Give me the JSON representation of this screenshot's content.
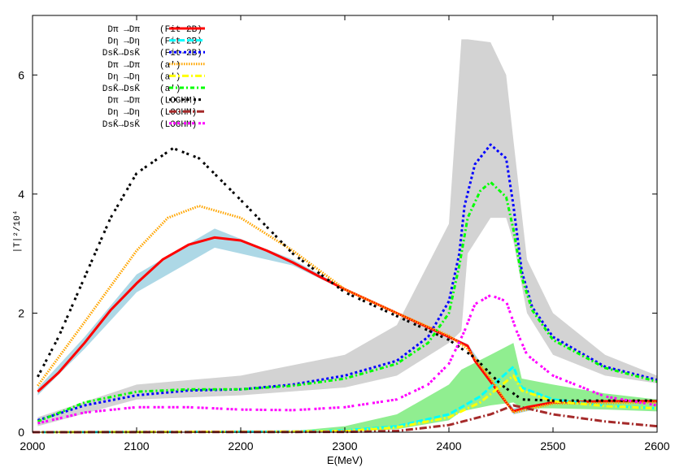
{
  "chart_data": {
    "type": "line",
    "title": "",
    "xlabel": "E(MeV)",
    "ylabel": "|T|²/10⁴",
    "xlim": [
      2000,
      2600
    ],
    "ylim": [
      0,
      7
    ],
    "xticks": [
      "2000",
      "2100",
      "2200",
      "2300",
      "2400",
      "2500",
      "2600"
    ],
    "yticks": [
      "0",
      "2",
      "4",
      "6"
    ],
    "grid": false,
    "legend_position": "top-left",
    "bands": [
      {
        "color": "#d3d3d3",
        "x": [
          2005,
          2100,
          2200,
          2300,
          2350,
          2400,
          2412,
          2418,
          2440,
          2455,
          2462,
          2475,
          2500,
          2550,
          2600
        ],
        "lower": [
          0.1,
          0.55,
          0.62,
          0.75,
          0.95,
          1.5,
          1.7,
          3.0,
          3.6,
          3.6,
          3.2,
          2.0,
          1.3,
          0.95,
          0.82
        ],
        "upper": [
          0.25,
          0.8,
          0.95,
          1.3,
          1.8,
          3.5,
          6.6,
          6.6,
          6.55,
          6.0,
          4.9,
          2.9,
          2.0,
          1.3,
          0.95
        ]
      },
      {
        "color": "#add8e6",
        "x": [
          2005,
          2050,
          2100,
          2175,
          2250,
          2300,
          2400,
          2418,
          2462,
          2500,
          2600
        ],
        "lower": [
          0.62,
          1.4,
          2.35,
          3.1,
          2.8,
          2.38,
          1.58,
          1.42,
          0.3,
          0.45,
          0.48
        ],
        "upper": [
          0.74,
          1.6,
          2.65,
          3.42,
          2.9,
          2.42,
          1.62,
          1.48,
          0.4,
          0.55,
          0.56
        ]
      },
      {
        "color": "#90ee90",
        "x": [
          2250,
          2300,
          2350,
          2400,
          2412,
          2440,
          2462,
          2470,
          2500,
          2550,
          2600
        ],
        "lower": [
          0,
          0.0,
          0.05,
          0.2,
          0.35,
          0.45,
          0.5,
          0.4,
          0.4,
          0.38,
          0.35
        ],
        "upper": [
          0.02,
          0.1,
          0.3,
          0.8,
          1.05,
          1.3,
          1.5,
          0.9,
          0.8,
          0.65,
          0.55
        ]
      }
    ],
    "series": [
      {
        "name": "Dπ →Dπ  (Fit-2B)",
        "label": {
          "a": "Dπ →Dπ",
          "b": "(Fit-2B)"
        },
        "color": "#ff0000",
        "dash": "",
        "width": 3,
        "x": [
          2005,
          2025,
          2050,
          2075,
          2100,
          2125,
          2150,
          2175,
          2200,
          2225,
          2250,
          2275,
          2300,
          2325,
          2350,
          2375,
          2400,
          2412,
          2418,
          2425,
          2440,
          2455,
          2462,
          2475,
          2500,
          2550,
          2600
        ],
        "y": [
          0.68,
          1.0,
          1.5,
          2.05,
          2.5,
          2.9,
          3.15,
          3.27,
          3.22,
          3.05,
          2.85,
          2.62,
          2.4,
          2.2,
          2.0,
          1.8,
          1.6,
          1.5,
          1.45,
          1.2,
          0.85,
          0.5,
          0.35,
          0.42,
          0.5,
          0.52,
          0.52
        ]
      },
      {
        "name": "Dη →Dη  (Fit-2B)",
        "label": {
          "a": "Dη →Dη",
          "b": "(Fit-2B)"
        },
        "color": "#00ffff",
        "dash": "8,3",
        "width": 3,
        "x": [
          2000,
          2250,
          2300,
          2350,
          2400,
          2430,
          2462,
          2470,
          2500,
          2550,
          2600
        ],
        "y": [
          0,
          0.01,
          0.03,
          0.1,
          0.3,
          0.6,
          1.1,
          0.75,
          0.55,
          0.45,
          0.4
        ]
      },
      {
        "name": "DsK̄→DsK̄ (Fit-2B)",
        "label": {
          "a": "DsK̄→DsK̄",
          "b": "(Fit-2B)"
        },
        "color": "#0000ff",
        "dash": "3,3",
        "width": 3,
        "x": [
          2005,
          2050,
          2100,
          2150,
          2200,
          2250,
          2300,
          2350,
          2380,
          2400,
          2410,
          2415,
          2425,
          2440,
          2455,
          2462,
          2470,
          2480,
          2500,
          2550,
          2600
        ],
        "y": [
          0.2,
          0.45,
          0.62,
          0.7,
          0.72,
          0.8,
          0.95,
          1.2,
          1.6,
          2.2,
          3.0,
          3.8,
          4.5,
          4.83,
          4.6,
          3.8,
          2.7,
          2.1,
          1.6,
          1.1,
          0.88
        ]
      },
      {
        "name": "Dπ →Dπ  (a′)",
        "label": {
          "a": "Dπ →Dπ",
          "b": "(a′)"
        },
        "color": "#ffa500",
        "dash": "1.5,1.5",
        "width": 3,
        "x": [
          2005,
          2050,
          2100,
          2130,
          2160,
          2200,
          2250,
          2300,
          2350,
          2400,
          2418,
          2440,
          2462,
          2500,
          2600
        ],
        "y": [
          0.78,
          1.85,
          3.05,
          3.6,
          3.8,
          3.6,
          3.05,
          2.4,
          2.0,
          1.62,
          1.4,
          0.9,
          0.33,
          0.48,
          0.5
        ]
      },
      {
        "name": "Dη →Dη  (a′)",
        "label": {
          "a": "Dη →Dη",
          "b": "(a′)"
        },
        "color": "#ffff00",
        "dash": "8,3,2,3",
        "width": 3,
        "x": [
          2000,
          2250,
          2300,
          2350,
          2400,
          2430,
          2462,
          2470,
          2500,
          2550,
          2600
        ],
        "y": [
          0,
          0.01,
          0.02,
          0.08,
          0.25,
          0.5,
          0.95,
          0.7,
          0.52,
          0.44,
          0.4
        ]
      },
      {
        "name": "DsK̄→DsK̄ (a′)",
        "label": {
          "a": "DsK̄→DsK̄",
          "b": "(a′)"
        },
        "color": "#00ff00",
        "dash": "5,3,2,3",
        "width": 3,
        "x": [
          2005,
          2050,
          2100,
          2150,
          2200,
          2250,
          2300,
          2350,
          2380,
          2400,
          2410,
          2418,
          2430,
          2440,
          2455,
          2462,
          2470,
          2480,
          2500,
          2550,
          2600
        ],
        "y": [
          0.18,
          0.5,
          0.68,
          0.72,
          0.72,
          0.78,
          0.9,
          1.15,
          1.5,
          2.0,
          2.8,
          3.6,
          4.05,
          4.2,
          3.95,
          3.4,
          2.6,
          2.05,
          1.55,
          1.08,
          0.85
        ]
      },
      {
        "name": "Dπ →Dπ  (LOGHM)",
        "label": {
          "a": "Dπ →Dπ",
          "b": "(LOGHM)"
        },
        "color": "#000000",
        "dash": "3,3,3,6",
        "width": 3,
        "x": [
          2005,
          2025,
          2050,
          2075,
          2100,
          2135,
          2160,
          2200,
          2250,
          2300,
          2350,
          2400,
          2425,
          2450,
          2470,
          2500,
          2600
        ],
        "y": [
          0.93,
          1.6,
          2.6,
          3.6,
          4.35,
          4.77,
          4.6,
          3.9,
          3.0,
          2.35,
          1.95,
          1.55,
          1.25,
          0.8,
          0.55,
          0.53,
          0.53
        ]
      },
      {
        "name": "Dη →Dη  (LOGHM)",
        "label": {
          "a": "Dη →Dη",
          "b": "(LOGHM)"
        },
        "color": "#a52a2a",
        "dash": "9,3,2,3",
        "width": 3,
        "x": [
          2000,
          2300,
          2350,
          2400,
          2440,
          2462,
          2475,
          2500,
          2550,
          2600
        ],
        "y": [
          0,
          0.005,
          0.02,
          0.12,
          0.3,
          0.45,
          0.4,
          0.3,
          0.18,
          0.1
        ]
      },
      {
        "name": "DsK̄→DsK̄ (LOGHM)",
        "label": {
          "a": "DsK̄→DsK̄",
          "b": "(LOGHM)"
        },
        "color": "#ff00ff",
        "dash": "3,2,3,2,3,5",
        "width": 3,
        "x": [
          2005,
          2050,
          2100,
          2150,
          2200,
          2250,
          2300,
          2350,
          2380,
          2400,
          2415,
          2425,
          2440,
          2455,
          2465,
          2475,
          2500,
          2550,
          2600
        ],
        "y": [
          0.15,
          0.33,
          0.42,
          0.42,
          0.38,
          0.37,
          0.42,
          0.55,
          0.8,
          1.15,
          1.7,
          2.15,
          2.3,
          2.2,
          1.7,
          1.3,
          0.95,
          0.6,
          0.45
        ]
      }
    ]
  }
}
